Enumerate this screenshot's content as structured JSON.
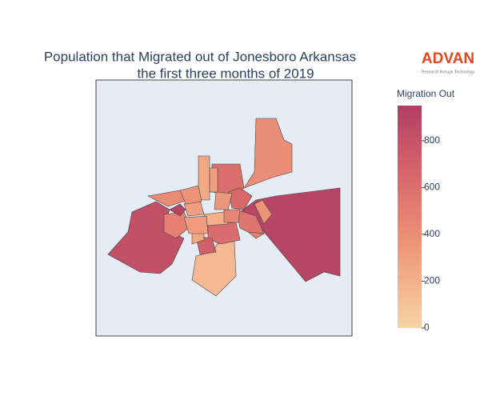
{
  "chart_data": {
    "type": "choropleth",
    "title": [
      "Population that Migrated out of Jonesboro Arkansas",
      "the first three months of 2019"
    ],
    "logo": {
      "name": "ADVAN",
      "tagline": "Research through Technology",
      "color": "#e4471d"
    },
    "colorbar_title": "Migration Out",
    "zlim": [
      0,
      950
    ],
    "zticks": [
      0,
      200,
      400,
      600,
      800
    ],
    "colorscale": [
      "#f6d3a8",
      "#f4b88f",
      "#ef9c7c",
      "#e68272",
      "#d86a6c",
      "#c65468",
      "#b03f63"
    ],
    "values": [
      820,
      900,
      400,
      150,
      600,
      650,
      560,
      620,
      700,
      480,
      900,
      300,
      250,
      250,
      300,
      420,
      200,
      320,
      480,
      380,
      450,
      350,
      380
    ]
  }
}
